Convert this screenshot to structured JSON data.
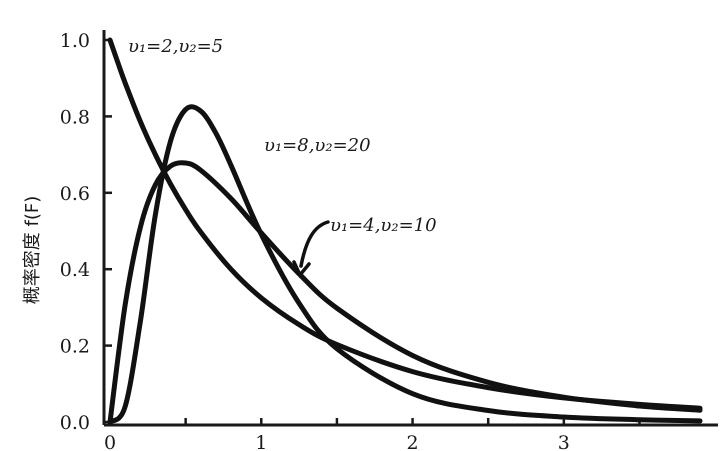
{
  "chart_data": {
    "type": "line",
    "title": "",
    "xlabel": "",
    "ylabel": "概率密度 f(F)",
    "xlim": [
      0,
      3.9
    ],
    "ylim": [
      0,
      1.0
    ],
    "y_ticks": [
      "0.0",
      "0.2",
      "0.4",
      "0.6",
      "0.8",
      "1.0"
    ],
    "x_ticks": [
      "0",
      "1",
      "2",
      "3"
    ],
    "grid": false,
    "series": [
      {
        "name": "υ1=2,υ2=5",
        "x": [
          0.0,
          0.05,
          0.1,
          0.2,
          0.3,
          0.4,
          0.5,
          0.6,
          0.8,
          1.0,
          1.25,
          1.5,
          2.0,
          2.5,
          3.0,
          3.5,
          3.9
        ],
        "y": [
          1.0,
          0.943,
          0.888,
          0.787,
          0.7,
          0.623,
          0.556,
          0.497,
          0.4,
          0.325,
          0.255,
          0.203,
          0.132,
          0.09,
          0.063,
          0.046,
          0.036
        ]
      },
      {
        "name": "υ1=4,υ2=10",
        "x": [
          0.0,
          0.1,
          0.2,
          0.3,
          0.4,
          0.5,
          0.6,
          0.8,
          1.0,
          1.25,
          1.5,
          2.0,
          2.5,
          3.0,
          3.5,
          3.9
        ],
        "y": [
          0.0,
          0.306,
          0.509,
          0.621,
          0.67,
          0.678,
          0.659,
          0.585,
          0.495,
          0.388,
          0.298,
          0.174,
          0.104,
          0.065,
          0.042,
          0.031
        ]
      },
      {
        "name": "υ1=8,υ2=20",
        "x": [
          0.0,
          0.1,
          0.2,
          0.3,
          0.4,
          0.5,
          0.6,
          0.7,
          0.8,
          1.0,
          1.25,
          1.5,
          2.0,
          2.5,
          3.0,
          3.5,
          3.9
        ],
        "y": [
          0.0,
          0.04,
          0.262,
          0.543,
          0.735,
          0.818,
          0.814,
          0.756,
          0.672,
          0.491,
          0.311,
          0.192,
          0.074,
          0.03,
          0.013,
          0.006,
          0.003
        ]
      }
    ],
    "labels": [
      {
        "text": "υ₁=2,υ₂=5",
        "series": 0
      },
      {
        "text": "υ₁=8,υ₂=20",
        "series": 2
      },
      {
        "text": "υ₁=4,υ₂=10",
        "series": 1
      }
    ]
  }
}
